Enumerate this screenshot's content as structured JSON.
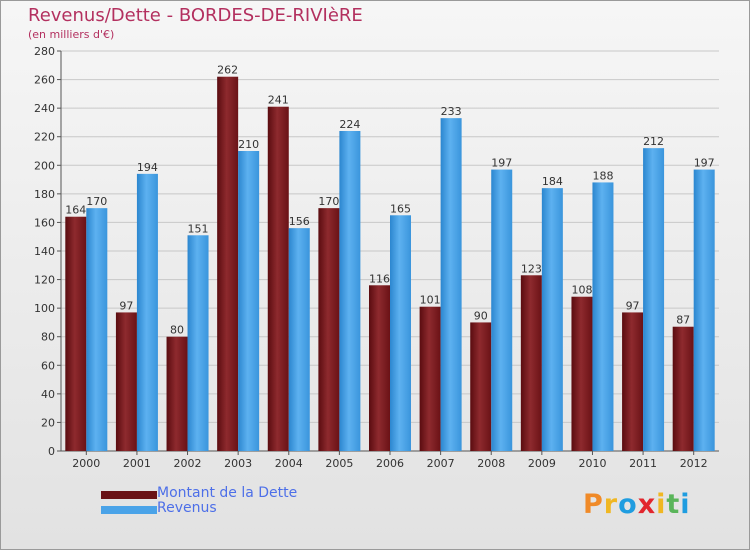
{
  "title": "Revenus/Dette - BORDES-DE-RIVIèRE",
  "subtitle": "(en milliers d'€)",
  "logo": {
    "text": "Proxiti",
    "colors": [
      "#f08a28",
      "#f0b722",
      "#1f9de0",
      "#e2262d",
      "#f0b722",
      "#5ab55a",
      "#1f9de0"
    ]
  },
  "chart_data": {
    "type": "bar",
    "categories": [
      "2000",
      "2001",
      "2002",
      "2003",
      "2004",
      "2005",
      "2006",
      "2007",
      "2008",
      "2009",
      "2010",
      "2011",
      "2012"
    ],
    "series": [
      {
        "name": "Montant de la Dette",
        "color": "#7a1a1e",
        "values": [
          164,
          97,
          80,
          262,
          241,
          170,
          116,
          101,
          90,
          123,
          108,
          97,
          87
        ]
      },
      {
        "name": "Revenus",
        "color": "#4aa3e8",
        "values": [
          170,
          194,
          151,
          210,
          156,
          224,
          165,
          233,
          197,
          184,
          188,
          212,
          197
        ]
      }
    ],
    "ylim": [
      0,
      280
    ],
    "yticks": [
      0,
      20,
      40,
      60,
      80,
      100,
      120,
      140,
      160,
      180,
      200,
      220,
      240,
      260,
      280
    ],
    "grid": true,
    "legend": "bottom-left"
  }
}
